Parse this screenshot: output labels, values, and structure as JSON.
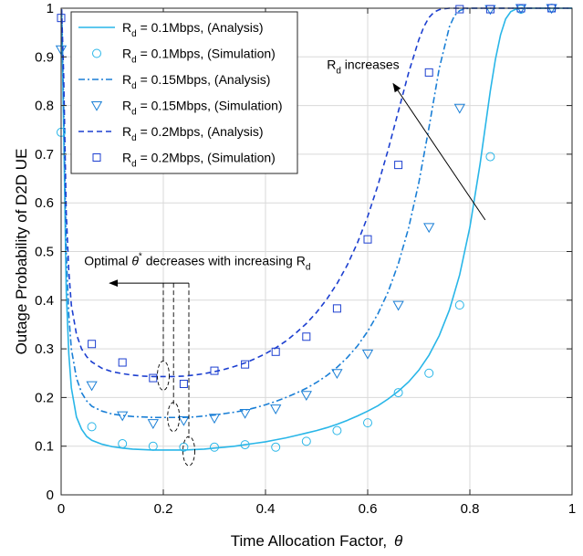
{
  "chart_data": {
    "type": "line",
    "xlabel": "Time Allocation Factor,",
    "xlabel_symbol": "θ",
    "ylabel": "Outage Probability of D2D UE",
    "xlim": [
      0,
      1
    ],
    "ylim": [
      0,
      1
    ],
    "xticks": [
      "0",
      "0.2",
      "0.4",
      "0.6",
      "0.8",
      "1"
    ],
    "yticks": [
      "0",
      "0.1",
      "0.2",
      "0.3",
      "0.4",
      "0.5",
      "0.6",
      "0.7",
      "0.8",
      "0.9",
      "1"
    ],
    "grid": true,
    "legend_position": "top-left",
    "series": [
      {
        "name_main": "R",
        "name_sub": "d",
        "name_rest": " = 0.1Mbps, (Analysis)",
        "kind": "analysis",
        "line_style": "solid",
        "color": "#29b6e8",
        "x": [
          0.001,
          0.005,
          0.01,
          0.015,
          0.02,
          0.03,
          0.04,
          0.05,
          0.06,
          0.08,
          0.1,
          0.12,
          0.14,
          0.16,
          0.18,
          0.2,
          0.22,
          0.24,
          0.26,
          0.28,
          0.3,
          0.32,
          0.34,
          0.36,
          0.38,
          0.4,
          0.42,
          0.44,
          0.46,
          0.48,
          0.5,
          0.52,
          0.54,
          0.56,
          0.58,
          0.6,
          0.62,
          0.64,
          0.66,
          0.68,
          0.7,
          0.72,
          0.74,
          0.76,
          0.78,
          0.8,
          0.82,
          0.84,
          0.85,
          0.86,
          0.87,
          0.88,
          0.89,
          0.9,
          1.0
        ],
        "y": [
          0.99,
          0.75,
          0.42,
          0.29,
          0.22,
          0.16,
          0.135,
          0.12,
          0.112,
          0.104,
          0.099,
          0.096,
          0.094,
          0.093,
          0.092,
          0.092,
          0.092,
          0.092,
          0.093,
          0.094,
          0.096,
          0.098,
          0.1,
          0.103,
          0.106,
          0.109,
          0.113,
          0.117,
          0.122,
          0.127,
          0.132,
          0.138,
          0.145,
          0.153,
          0.162,
          0.172,
          0.183,
          0.197,
          0.213,
          0.232,
          0.256,
          0.287,
          0.327,
          0.38,
          0.452,
          0.55,
          0.68,
          0.83,
          0.895,
          0.945,
          0.978,
          0.993,
          0.998,
          1.0,
          1.0
        ]
      },
      {
        "name_main": "R",
        "name_sub": "d",
        "name_rest": " = 0.1Mbps, (Simulation)",
        "kind": "simulation",
        "marker": "circle",
        "color": "#29b6e8",
        "x": [
          0.0,
          0.06,
          0.12,
          0.18,
          0.24,
          0.3,
          0.36,
          0.42,
          0.48,
          0.54,
          0.6,
          0.66,
          0.72,
          0.78,
          0.84,
          0.9,
          0.96
        ],
        "y": [
          0.745,
          0.14,
          0.105,
          0.1,
          0.098,
          0.098,
          0.103,
          0.098,
          0.11,
          0.132,
          0.148,
          0.21,
          0.25,
          0.39,
          0.695,
          0.998,
          1.0
        ]
      },
      {
        "name_main": "R",
        "name_sub": "d",
        "name_rest": " = 0.15Mbps, (Analysis)",
        "kind": "analysis",
        "line_style": "dashdot",
        "color": "#1a7fd6",
        "x": [
          0.001,
          0.005,
          0.01,
          0.015,
          0.02,
          0.03,
          0.04,
          0.05,
          0.06,
          0.08,
          0.1,
          0.12,
          0.14,
          0.16,
          0.18,
          0.2,
          0.22,
          0.24,
          0.26,
          0.28,
          0.3,
          0.32,
          0.34,
          0.36,
          0.38,
          0.4,
          0.42,
          0.44,
          0.46,
          0.48,
          0.5,
          0.52,
          0.54,
          0.56,
          0.58,
          0.6,
          0.62,
          0.64,
          0.66,
          0.68,
          0.7,
          0.72,
          0.74,
          0.76,
          0.77,
          0.78,
          0.79,
          0.8,
          0.81,
          0.82,
          0.83,
          0.84,
          1.0
        ],
        "y": [
          0.995,
          0.8,
          0.5,
          0.37,
          0.3,
          0.24,
          0.21,
          0.193,
          0.182,
          0.172,
          0.166,
          0.163,
          0.161,
          0.16,
          0.159,
          0.159,
          0.159,
          0.159,
          0.16,
          0.162,
          0.164,
          0.167,
          0.17,
          0.174,
          0.179,
          0.185,
          0.192,
          0.2,
          0.209,
          0.219,
          0.231,
          0.245,
          0.262,
          0.282,
          0.306,
          0.336,
          0.372,
          0.417,
          0.475,
          0.548,
          0.641,
          0.755,
          0.876,
          0.962,
          0.985,
          0.995,
          0.999,
          1.0,
          1.0,
          1.0,
          1.0,
          1.0,
          1.0
        ]
      },
      {
        "name_main": "R",
        "name_sub": "d",
        "name_rest": " = 0.15Mbps, (Simulation)",
        "kind": "simulation",
        "marker": "triangle-down",
        "color": "#1a7fd6",
        "x": [
          0.0,
          0.06,
          0.12,
          0.18,
          0.24,
          0.3,
          0.36,
          0.42,
          0.48,
          0.54,
          0.6,
          0.66,
          0.72,
          0.78,
          0.84,
          0.9,
          0.96
        ],
        "y": [
          0.915,
          0.225,
          0.163,
          0.147,
          0.153,
          0.158,
          0.168,
          0.177,
          0.205,
          0.25,
          0.29,
          0.39,
          0.55,
          0.795,
          0.998,
          1.0,
          1.0
        ]
      },
      {
        "name_main": "R",
        "name_sub": "d",
        "name_rest": " = 0.2Mbps, (Analysis)",
        "kind": "analysis",
        "line_style": "dashed",
        "color": "#1c3fd0",
        "x": [
          0.001,
          0.005,
          0.01,
          0.015,
          0.02,
          0.03,
          0.04,
          0.05,
          0.06,
          0.08,
          0.1,
          0.12,
          0.14,
          0.16,
          0.18,
          0.2,
          0.22,
          0.24,
          0.26,
          0.28,
          0.3,
          0.32,
          0.34,
          0.36,
          0.38,
          0.4,
          0.42,
          0.44,
          0.46,
          0.48,
          0.5,
          0.52,
          0.54,
          0.56,
          0.58,
          0.6,
          0.62,
          0.64,
          0.66,
          0.68,
          0.7,
          0.71,
          0.72,
          0.73,
          0.74,
          0.75,
          0.76,
          0.77,
          0.78,
          1.0
        ],
        "y": [
          0.998,
          0.86,
          0.58,
          0.46,
          0.39,
          0.33,
          0.3,
          0.284,
          0.273,
          0.26,
          0.253,
          0.249,
          0.246,
          0.244,
          0.243,
          0.243,
          0.243,
          0.244,
          0.246,
          0.249,
          0.253,
          0.258,
          0.264,
          0.271,
          0.28,
          0.29,
          0.302,
          0.316,
          0.333,
          0.352,
          0.375,
          0.402,
          0.434,
          0.472,
          0.518,
          0.572,
          0.636,
          0.709,
          0.788,
          0.867,
          0.935,
          0.962,
          0.981,
          0.992,
          0.997,
          0.999,
          1.0,
          1.0,
          1.0,
          1.0
        ]
      },
      {
        "name_main": "R",
        "name_sub": "d",
        "name_rest": " = 0.2Mbps, (Simulation)",
        "kind": "simulation",
        "marker": "square",
        "color": "#1c3fd0",
        "x": [
          0.0,
          0.06,
          0.12,
          0.18,
          0.24,
          0.3,
          0.36,
          0.42,
          0.48,
          0.54,
          0.6,
          0.66,
          0.72,
          0.78,
          0.84,
          0.9,
          0.96
        ],
        "y": [
          0.98,
          0.31,
          0.272,
          0.24,
          0.228,
          0.255,
          0.268,
          0.294,
          0.325,
          0.383,
          0.525,
          0.678,
          0.868,
          0.998,
          0.998,
          1.0,
          1.0
        ]
      }
    ],
    "annotations": [
      {
        "id": "rd-increases",
        "text_main": "R",
        "text_sub": "d",
        "text_rest": " increases",
        "text_at": [
          0.52,
          0.875
        ],
        "arrow_from": [
          0.83,
          0.565
        ],
        "arrow_to": [
          0.65,
          0.845
        ]
      },
      {
        "id": "optimal-theta",
        "text_pre": "Optimal ",
        "text_theta": "θ",
        "text_sup": "*",
        "text_post": " decreases with increasing R",
        "text_sub": "d",
        "text_at": [
          0.045,
          0.472
        ],
        "arrow_from": [
          0.25,
          0.435
        ],
        "arrow_to": [
          0.095,
          0.435
        ],
        "drop_lines_x": [
          0.2,
          0.22,
          0.25
        ],
        "drop_lines_y": [
          0.435,
          0.435
        ],
        "ellipses": [
          {
            "cx": 0.2,
            "cy": 0.245
          },
          {
            "cx": 0.22,
            "cy": 0.16
          },
          {
            "cx": 0.25,
            "cy": 0.09
          }
        ]
      }
    ]
  }
}
